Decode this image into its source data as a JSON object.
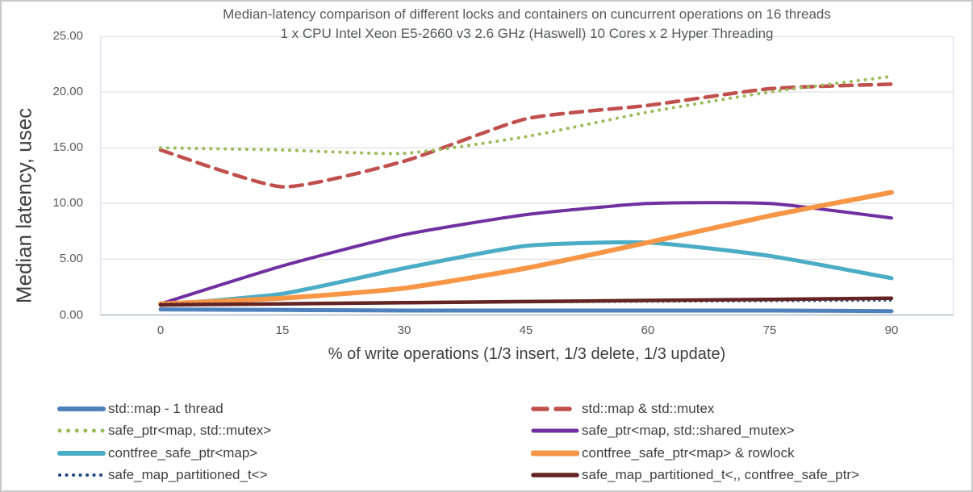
{
  "chart_data": {
    "type": "line",
    "title_line1": "Median-latency comparison of different locks and containers on cuncurrent operations on 16 threads",
    "title_line2": "1 x CPU Intel Xeon E5-2660 v3 2.6 GHz (Haswell) 10 Cores x 2 Hyper Threading",
    "ylabel": "Median latency, usec",
    "xlabel": "% of write operations (1/3 insert, 1/3 delete, 1/3 update)",
    "grid": true,
    "legend_position": "bottom-two-columns",
    "ylim": [
      0,
      25
    ],
    "y_tick_labels": [
      "0.00",
      "5.00",
      "10.00",
      "15.00",
      "20.00",
      "25.00"
    ],
    "y_tick_values": [
      0,
      5,
      10,
      15,
      20,
      25
    ],
    "x_tick_labels": [
      "0",
      "15",
      "30",
      "45",
      "60",
      "75",
      "90"
    ],
    "x": [
      0,
      15,
      30,
      45,
      60,
      75,
      90
    ],
    "series": [
      {
        "name": "std::map - 1 thread",
        "color": "#4F81BD",
        "style": "solid",
        "width": 5,
        "values": [
          0.5,
          0.45,
          0.4,
          0.4,
          0.4,
          0.4,
          0.35
        ]
      },
      {
        "name": "std::map & std::mutex",
        "color": "#C0504D",
        "style": "dashed",
        "width": 4.5,
        "values": [
          14.8,
          11.5,
          13.8,
          17.6,
          18.8,
          20.3,
          20.7
        ]
      },
      {
        "name": "safe_ptr<map, std::mutex>",
        "color": "#9BBB59",
        "style": "dotted",
        "width": 4,
        "values": [
          15.0,
          14.8,
          14.5,
          16.0,
          18.2,
          20.0,
          21.4
        ]
      },
      {
        "name": "safe_ptr<map, std::shared_mutex>",
        "color": "#7030A0",
        "style": "solid",
        "width": 4,
        "values": [
          1.0,
          4.4,
          7.2,
          9.0,
          10.0,
          10.0,
          8.7
        ]
      },
      {
        "name": "contfree_safe_ptr<map>",
        "color": "#4BACC6",
        "style": "solid",
        "width": 5,
        "values": [
          0.9,
          1.9,
          4.2,
          6.2,
          6.5,
          5.3,
          3.3
        ]
      },
      {
        "name": "contfree_safe_ptr<map> & rowlock",
        "color": "#F79646",
        "style": "solid",
        "width": 6,
        "values": [
          1.0,
          1.5,
          2.4,
          4.2,
          6.5,
          8.9,
          11.0
        ]
      },
      {
        "name": "safe_map_partitioned_t<>",
        "color": "#1F497D",
        "style": "dotted",
        "width": 3,
        "values": [
          1.0,
          1.05,
          1.1,
          1.15,
          1.2,
          1.25,
          1.3
        ]
      },
      {
        "name": "safe_map_partitioned_t<,, contfree_safe_ptr>",
        "color": "#632423",
        "style": "solid",
        "width": 4.5,
        "values": [
          0.9,
          1.0,
          1.1,
          1.2,
          1.3,
          1.4,
          1.5
        ]
      }
    ],
    "legend_columns": [
      [
        0,
        2,
        4,
        6
      ],
      [
        1,
        3,
        5,
        7
      ]
    ],
    "colors": {
      "gridline": "#d9d9d9",
      "plot_border": "#dbe3ef",
      "axis_line": "#b3bdcc",
      "tick_text": "#595959",
      "title_text": "#595959",
      "axis_title_text": "#3f3f3f"
    }
  }
}
